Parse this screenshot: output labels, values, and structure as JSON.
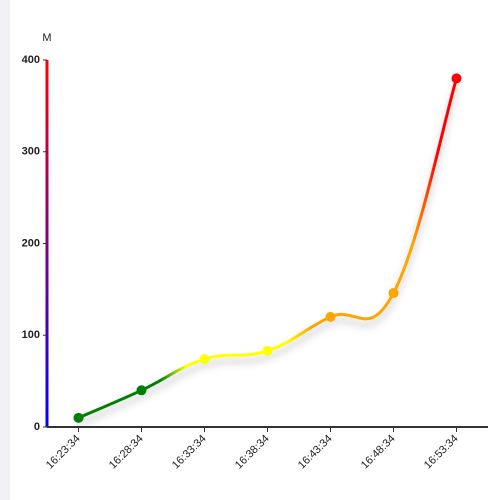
{
  "chart_data": {
    "type": "line",
    "y_label": "M",
    "categories": [
      "16:23:34",
      "16:28:34",
      "16:33:34",
      "16:38:34",
      "16:43:34",
      "16:48:34",
      "16:53:34"
    ],
    "series": [
      {
        "values": [
          10,
          40,
          74,
          83,
          120,
          146,
          380
        ],
        "colors": [
          "green",
          "green",
          "yellow",
          "yellow",
          "orange",
          "orange",
          "red"
        ]
      }
    ],
    "ylim": [
      0,
      400
    ],
    "yticks": [
      0,
      100,
      200,
      300,
      400
    ],
    "y_axis_colors": [
      "blue",
      "red"
    ],
    "smooth": true
  }
}
